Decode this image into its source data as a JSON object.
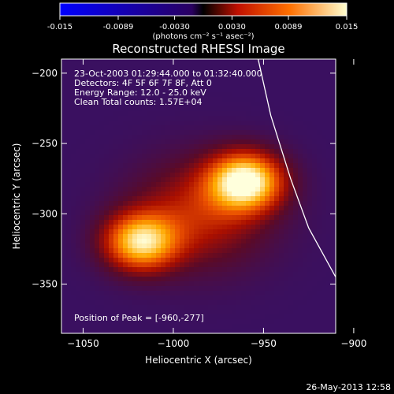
{
  "colorbar": {
    "tick_labels": [
      "-0.015",
      "-0.0089",
      "-0.0030",
      "0.0030",
      "0.0089",
      "0.015"
    ],
    "tick_values": [
      -0.015,
      -0.0089,
      -0.003,
      0.003,
      0.0089,
      0.015
    ],
    "range": [
      -0.015,
      0.015
    ],
    "units": "(photons cm⁻² s⁻¹ asec⁻²)"
  },
  "chart_data": {
    "type": "heatmap",
    "title": "Reconstructed RHESSI Image",
    "xlabel": "Heliocentric X (arcsec)",
    "ylabel": "Heliocentric Y (arcsec)",
    "xlim": [
      -1062,
      -910
    ],
    "ylim": [
      -385,
      -190
    ],
    "x_ticks": [
      -1050,
      -1000,
      -950,
      -900
    ],
    "x_tick_labels": [
      "−1050",
      "−1000",
      "−950",
      "−900"
    ],
    "y_ticks": [
      -200,
      -250,
      -300,
      -350
    ],
    "y_tick_labels": [
      "−200",
      "−250",
      "−300",
      "−350"
    ],
    "sources": [
      {
        "x": -960,
        "y": -277,
        "amplitude": 1.0,
        "sigma": 14
      },
      {
        "x": -1018,
        "y": -320,
        "amplitude": 0.85,
        "sigma": 14
      },
      {
        "x": -985,
        "y": -300,
        "amplitude": 0.4,
        "sigma": 26
      }
    ],
    "limb": [
      {
        "x": -953,
        "y": -190
      },
      {
        "x": -946,
        "y": -230
      },
      {
        "x": -935,
        "y": -275
      },
      {
        "x": -925,
        "y": -310
      },
      {
        "x": -910,
        "y": -345
      },
      {
        "x": -892,
        "y": -385
      }
    ]
  },
  "info": {
    "line1": "23-Oct-2003 01:29:44.000 to 01:32:40.000",
    "line2": "Detectors: 4F 5F 6F 7F 8F, Att 0",
    "line3": "Energy Range: 12.0 - 25.0 keV",
    "line4": "Clean    Total counts: 1.57E+04",
    "peak": "Position of Peak = [-960,-277]"
  },
  "footer": "26-May-2013 12:58"
}
